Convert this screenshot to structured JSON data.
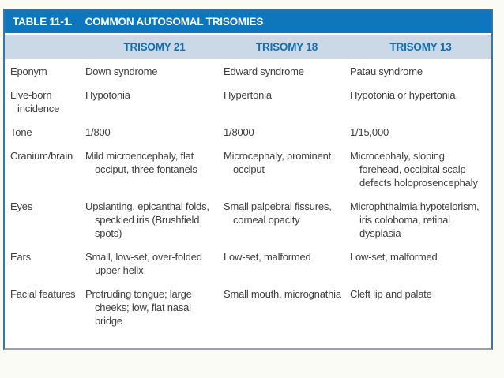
{
  "table": {
    "label": "TABLE 11-1.",
    "title": "COMMON AUTOSOMAL TRISOMIES",
    "colors": {
      "title_bar_bg": "#0e76bd",
      "title_bar_text": "#ffffff",
      "column_header_bg": "#cbd9e6",
      "column_header_text": "#0f6fb4",
      "body_text": "#3e3e3e",
      "border": "#2e79b2"
    },
    "columns": [
      "",
      "TRISOMY 21",
      "TRISOMY 18",
      "TRISOMY 13"
    ],
    "rows": [
      {
        "label": "Eponym",
        "trisomy21": "Down syndrome",
        "trisomy18": "Edward syndrome",
        "trisomy13": "Patau syndrome"
      },
      {
        "label": "Live-born incidence",
        "trisomy21": "Hypotonia",
        "trisomy18": "Hypertonia",
        "trisomy13": "Hypotonia or hypertonia"
      },
      {
        "label": "Tone",
        "trisomy21": "1/800",
        "trisomy18": "1/8000",
        "trisomy13": "1/15,000"
      },
      {
        "label": "Cranium/brain",
        "trisomy21": "Mild microencephaly, flat occiput, three fontanels",
        "trisomy18": "Microcephaly, prominent occiput",
        "trisomy13": "Microcephaly, sloping forehead, occipital scalp defects holoprosencephaly"
      },
      {
        "label": "Eyes",
        "trisomy21": "Upslanting, epicanthal folds, speckled iris (Brushfield spots)",
        "trisomy18": "Small palpebral fissures, corneal opacity",
        "trisomy13": "Microphthalmia hypotelorism, iris coloboma, retinal dysplasia"
      },
      {
        "label": "Ears",
        "trisomy21": "Small, low-set, over-folded upper helix",
        "trisomy18": "Low-set, malformed",
        "trisomy13": "Low-set, malformed"
      },
      {
        "label": "Facial features",
        "trisomy21": "Protruding tongue; large cheeks; low, flat nasal bridge",
        "trisomy18": "Small mouth, micrognathia",
        "trisomy13": "Cleft lip and palate"
      }
    ]
  }
}
